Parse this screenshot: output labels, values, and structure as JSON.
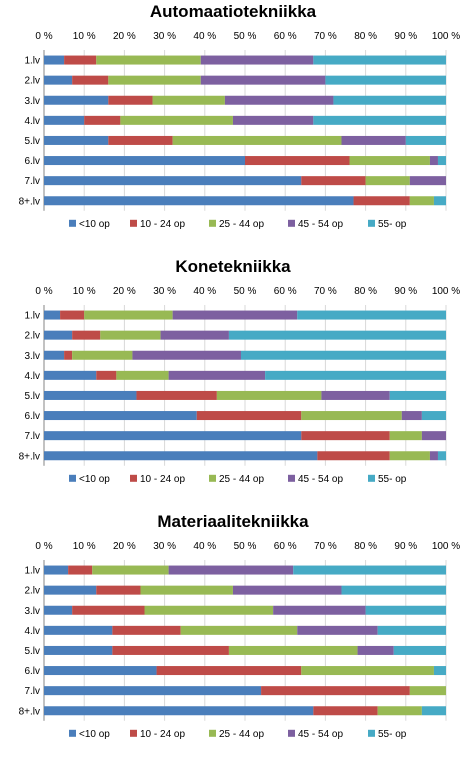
{
  "legend": [
    "<10 op",
    "10 - 24 op",
    "25 - 44 op",
    "45 - 54 op",
    "55- op"
  ],
  "colors": [
    "#4a7ebb",
    "#be4b48",
    "#98b954",
    "#7d60a0",
    "#46aac5"
  ],
  "x_ticks": [
    "0 %",
    "10 %",
    "20 %",
    "30 %",
    "40 %",
    "50 %",
    "60 %",
    "70 %",
    "80 %",
    "90 %",
    "100 %"
  ],
  "chart_data": [
    {
      "type": "bar",
      "stacked": true,
      "orientation": "horizontal",
      "title": "Automaatiotekniikka",
      "categories": [
        "1.lv",
        "2.lv",
        "3.lv",
        "4.lv",
        "5.lv",
        "6.lv",
        "7.lv",
        "8+.lv"
      ],
      "xlim": [
        0,
        100
      ],
      "series": [
        {
          "name": "<10 op",
          "values": [
            5,
            7,
            16,
            10,
            16,
            50,
            64,
            77
          ]
        },
        {
          "name": "10 - 24 op",
          "values": [
            8,
            9,
            11,
            9,
            16,
            26,
            16,
            14
          ]
        },
        {
          "name": "25 - 44 op",
          "values": [
            26,
            23,
            18,
            28,
            42,
            20,
            11,
            6
          ]
        },
        {
          "name": "45 - 54 op",
          "values": [
            28,
            31,
            27,
            20,
            16,
            2,
            9,
            0
          ]
        },
        {
          "name": "55- op",
          "values": [
            33,
            30,
            28,
            33,
            10,
            2,
            0,
            3
          ]
        }
      ]
    },
    {
      "type": "bar",
      "stacked": true,
      "orientation": "horizontal",
      "title": "Konetekniikka",
      "categories": [
        "1.lv",
        "2.lv",
        "3.lv",
        "4.lv",
        "5.lv",
        "6.lv",
        "7.lv",
        "8+.lv"
      ],
      "xlim": [
        0,
        100
      ],
      "series": [
        {
          "name": "<10 op",
          "values": [
            4,
            7,
            5,
            13,
            23,
            38,
            64,
            68
          ]
        },
        {
          "name": "10 - 24 op",
          "values": [
            6,
            7,
            2,
            5,
            20,
            26,
            22,
            18
          ]
        },
        {
          "name": "25 - 44 op",
          "values": [
            22,
            15,
            15,
            13,
            26,
            25,
            8,
            10
          ]
        },
        {
          "name": "45 - 54 op",
          "values": [
            31,
            17,
            27,
            24,
            17,
            5,
            6,
            2
          ]
        },
        {
          "name": "55- op",
          "values": [
            37,
            54,
            51,
            45,
            14,
            6,
            0,
            2
          ]
        }
      ]
    },
    {
      "type": "bar",
      "stacked": true,
      "orientation": "horizontal",
      "title": "Materiaalitekniikka",
      "categories": [
        "1.lv",
        "2.lv",
        "3.lv",
        "4.lv",
        "5.lv",
        "6.lv",
        "7.lv",
        "8+.lv"
      ],
      "xlim": [
        0,
        100
      ],
      "series": [
        {
          "name": "<10 op",
          "values": [
            6,
            13,
            7,
            17,
            17,
            28,
            54,
            67
          ]
        },
        {
          "name": "10 - 24 op",
          "values": [
            6,
            11,
            18,
            17,
            29,
            36,
            37,
            16
          ]
        },
        {
          "name": "25 - 44 op",
          "values": [
            19,
            23,
            32,
            29,
            32,
            33,
            9,
            11
          ]
        },
        {
          "name": "45 - 54 op",
          "values": [
            31,
            27,
            23,
            20,
            9,
            0,
            0,
            0
          ]
        },
        {
          "name": "55- op",
          "values": [
            38,
            26,
            20,
            17,
            13,
            3,
            0,
            6
          ]
        }
      ]
    }
  ]
}
